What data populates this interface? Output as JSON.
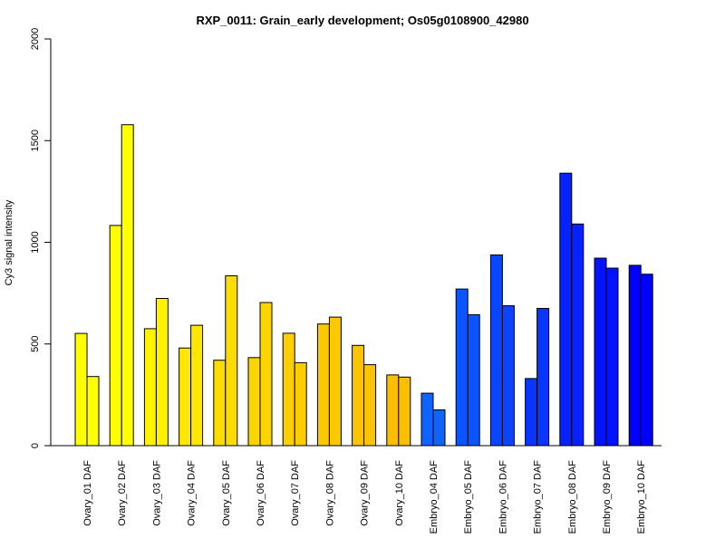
{
  "chart_data": {
    "type": "bar",
    "title": "RXP_0011: Grain_early development; Os05g0108900_42980",
    "xlabel": "",
    "ylabel": "Cy3 signal intensity",
    "ylim": [
      0,
      2000
    ],
    "yticks": [
      "0",
      "500",
      "1000",
      "1500",
      "2000"
    ],
    "grid": false,
    "legend": "none",
    "categories": [
      "Ovary_01 DAF",
      "Ovary_02 DAF",
      "Ovary_03 DAF",
      "Ovary_04 DAF",
      "Ovary_05 DAF",
      "Ovary_06 DAF",
      "Ovary_07 DAF",
      "Ovary_08 DAF",
      "Ovary_09 DAF",
      "Ovary_10 DAF",
      "Embryo_04 DAF",
      "Embryo_05 DAF",
      "Embryo_06 DAF",
      "Embryo_07 DAF",
      "Embryo_08 DAF",
      "Embryo_09 DAF",
      "Embryo_10 DAF"
    ],
    "series": [
      {
        "values": [
          552,
          1083,
          575,
          480,
          420,
          433,
          553,
          598,
          493,
          348,
          258,
          770,
          938,
          330,
          1340,
          922,
          887
        ]
      },
      {
        "values": [
          340,
          1578,
          724,
          592,
          835,
          704,
          408,
          632,
          398,
          337,
          176,
          644,
          688,
          675,
          1090,
          873,
          843
        ]
      }
    ],
    "colors": [
      "#ffff00",
      "#ffff00",
      "#fef200",
      "#fde600",
      "#fcdc00",
      "#fcd400",
      "#fcce00",
      "#fcc900",
      "#fcc400",
      "#fcbf00",
      "#0f64ff",
      "#0a55ff",
      "#0a45ff",
      "#0836ff",
      "#0522ff",
      "#0312ff",
      "#0000ff"
    ]
  }
}
